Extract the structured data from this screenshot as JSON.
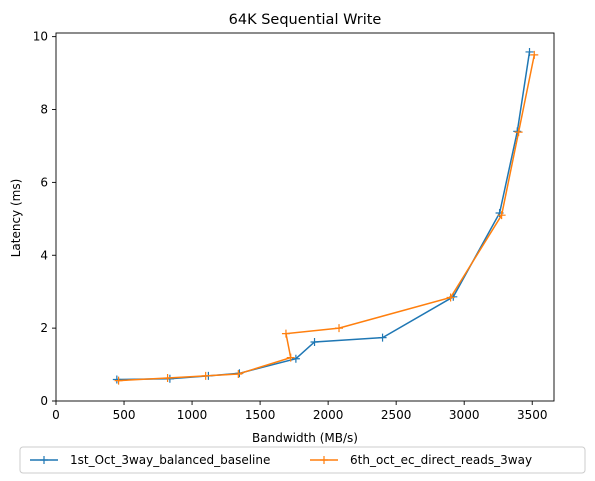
{
  "chart_data": {
    "type": "line",
    "title": "64K  Sequential Write",
    "xlabel": "Bandwidth (MB/s)",
    "ylabel": "Latency (ms)",
    "xlim": [
      0,
      3660
    ],
    "ylim": [
      0,
      10.1
    ],
    "xticks": [
      0,
      500,
      1000,
      1500,
      2000,
      2500,
      3000,
      3500
    ],
    "yticks": [
      0,
      2,
      4,
      6,
      8,
      10
    ],
    "grid": false,
    "legend_position": "bottom-center",
    "series": [
      {
        "name": "1st_Oct_3way_balanced_baseline",
        "color": "#1f77b4",
        "marker": "plus",
        "x": [
          447,
          837,
          1120,
          1348,
          1763,
          1900,
          2400,
          2920,
          3260,
          3390,
          3480
        ],
        "y": [
          0.59,
          0.61,
          0.69,
          0.76,
          1.16,
          1.62,
          1.74,
          2.86,
          5.16,
          7.4,
          9.58
        ]
      },
      {
        "name": "6th_oct_ec_direct_reads_3way",
        "color": "#ff7f0e",
        "marker": "plus",
        "x": [
          460,
          820,
          1100,
          1340,
          1725,
          1690,
          2080,
          2900,
          3275,
          3400,
          3515
        ],
        "y": [
          0.56,
          0.63,
          0.69,
          0.74,
          1.19,
          1.85,
          2.0,
          2.84,
          5.1,
          7.38,
          9.5
        ]
      }
    ]
  }
}
